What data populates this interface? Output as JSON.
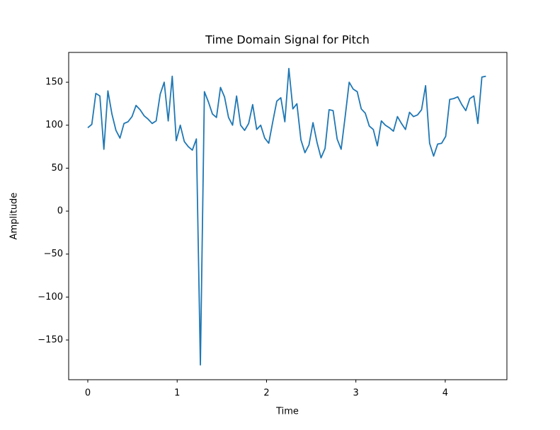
{
  "chart_data": {
    "type": "line",
    "title": "Time Domain Signal for Pitch",
    "xlabel": "Time",
    "ylabel": "Amplitude",
    "color": "#1f77b4",
    "x": [
      0,
      0.045,
      0.09,
      0.135,
      0.18,
      0.225,
      0.27,
      0.315,
      0.36,
      0.405,
      0.45,
      0.495,
      0.54,
      0.585,
      0.63,
      0.675,
      0.72,
      0.765,
      0.81,
      0.855,
      0.9,
      0.945,
      0.99,
      1.035,
      1.08,
      1.125,
      1.17,
      1.215,
      1.26,
      1.305,
      1.35,
      1.395,
      1.44,
      1.485,
      1.53,
      1.575,
      1.62,
      1.665,
      1.71,
      1.755,
      1.8,
      1.845,
      1.89,
      1.935,
      1.98,
      2.025,
      2.07,
      2.115,
      2.16,
      2.205,
      2.25,
      2.295,
      2.34,
      2.385,
      2.43,
      2.475,
      2.52,
      2.565,
      2.61,
      2.655,
      2.7,
      2.745,
      2.79,
      2.835,
      2.88,
      2.925,
      2.97,
      3.015,
      3.06,
      3.105,
      3.15,
      3.195,
      3.24,
      3.285,
      3.33,
      3.375,
      3.42,
      3.465,
      3.51,
      3.555,
      3.6,
      3.645,
      3.69,
      3.735,
      3.78,
      3.825,
      3.87,
      3.915,
      3.96,
      4.005,
      4.05,
      4.095,
      4.14,
      4.185,
      4.23,
      4.275,
      4.32,
      4.365,
      4.41,
      4.455
    ],
    "values": [
      97,
      101,
      137,
      134,
      72,
      140,
      113,
      94,
      85,
      102,
      104,
      110,
      123,
      118,
      111,
      107,
      102,
      105,
      136,
      150,
      105,
      157,
      82,
      100,
      81,
      75,
      71,
      84,
      -179,
      139,
      127,
      113,
      109,
      144,
      133,
      109,
      100,
      134,
      100,
      94,
      102,
      124,
      95,
      100,
      85,
      79,
      104,
      128,
      132,
      104,
      166,
      119,
      125,
      83,
      68,
      77,
      103,
      80,
      62,
      73,
      118,
      117,
      84,
      72,
      110,
      150,
      142,
      139,
      119,
      114,
      99,
      95,
      76,
      105,
      100,
      97,
      93,
      110,
      102,
      95,
      115,
      110,
      112,
      118,
      146,
      79,
      64,
      78,
      79,
      87,
      130,
      131,
      133,
      124,
      117,
      131,
      134,
      102,
      156,
      157
    ],
    "xlim": [
      -0.214,
      4.69
    ],
    "ylim": [
      -196.2,
      184.7
    ],
    "xticks": [
      0,
      1,
      2,
      3,
      4
    ],
    "yticks": [
      {
        "value": -150,
        "label": "−150"
      },
      {
        "value": -100,
        "label": "−100"
      },
      {
        "value": -50,
        "label": "−50"
      },
      0,
      50,
      100,
      150
    ]
  }
}
